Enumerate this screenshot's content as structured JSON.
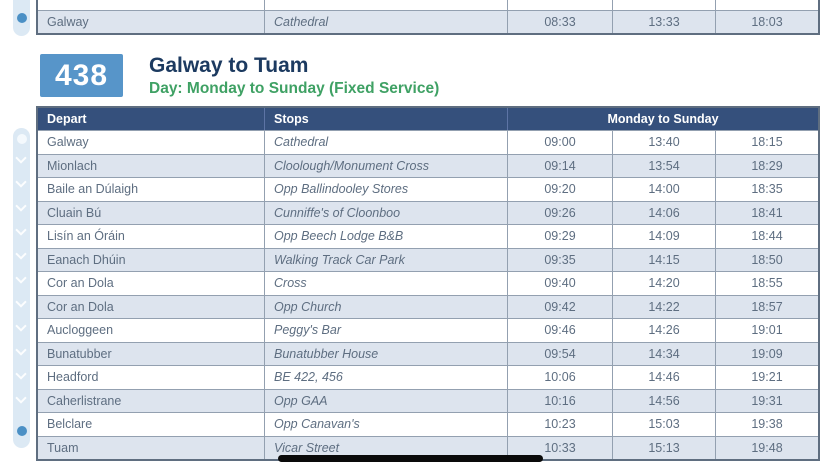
{
  "previous_table": {
    "partial_row": {
      "depart": "",
      "stop": "",
      "times": [
        "",
        "",
        ""
      ]
    },
    "rows": [
      {
        "depart": "Galway",
        "stop": "Cathedral",
        "times": [
          "08:33",
          "13:33",
          "18:03"
        ]
      }
    ]
  },
  "route_header": {
    "route_number": "438",
    "title": "Galway to Tuam",
    "day_label": "Day: Monday to Sunday (Fixed Service)"
  },
  "timetable": {
    "headers": {
      "depart": "Depart",
      "stops": "Stops",
      "times_group": "Monday to Sunday"
    },
    "rows": [
      {
        "depart": "Galway",
        "stop": "Cathedral",
        "times": [
          "09:00",
          "13:40",
          "18:15"
        ]
      },
      {
        "depart": "Mionlach",
        "stop": "Cloolough/Monument Cross",
        "times": [
          "09:14",
          "13:54",
          "18:29"
        ]
      },
      {
        "depart": "Baile an Dúlaigh",
        "stop": "Opp Ballindooley Stores",
        "times": [
          "09:20",
          "14:00",
          "18:35"
        ]
      },
      {
        "depart": "Cluain Bú",
        "stop": "Cunniffe's of Cloonboo",
        "times": [
          "09:26",
          "14:06",
          "18:41"
        ]
      },
      {
        "depart": "Lisín an Óráin",
        "stop": "Opp Beech Lodge B&B",
        "times": [
          "09:29",
          "14:09",
          "18:44"
        ]
      },
      {
        "depart": "Eanach Dhúin",
        "stop": "Walking Track Car Park",
        "times": [
          "09:35",
          "14:15",
          "18:50"
        ]
      },
      {
        "depart": "Cor an Dola",
        "stop": "Cross",
        "times": [
          "09:40",
          "14:20",
          "18:55"
        ]
      },
      {
        "depart": "Cor an Dola",
        "stop": "Opp Church",
        "times": [
          "09:42",
          "14:22",
          "18:57"
        ]
      },
      {
        "depart": "Aucloggeen",
        "stop": "Peggy's Bar",
        "times": [
          "09:46",
          "14:26",
          "19:01"
        ]
      },
      {
        "depart": "Bunatubber",
        "stop": "Bunatubber House",
        "times": [
          "09:54",
          "14:34",
          "19:09"
        ]
      },
      {
        "depart": "Headford",
        "stop": "BE 422, 456",
        "times": [
          "10:06",
          "14:46",
          "19:21"
        ]
      },
      {
        "depart": "Caherlistrane",
        "stop": "Opp GAA",
        "times": [
          "10:16",
          "14:56",
          "19:31"
        ]
      },
      {
        "depart": "Belclare",
        "stop": "Opp Canavan's",
        "times": [
          "10:23",
          "15:03",
          "19:38"
        ]
      },
      {
        "depart": "Tuam",
        "stop": "Vicar Street",
        "times": [
          "10:33",
          "15:13",
          "19:48"
        ]
      }
    ]
  },
  "colors": {
    "header_bg": "#35507c",
    "badge_bg": "#5795c9",
    "title_color": "#1c3a60",
    "day_label_green": "#3fa164",
    "alt_row_bg": "#dde4ee",
    "row_text": "#5e6e81",
    "ribbon": "#dce9f4",
    "dot_blue": "#4b90c5"
  }
}
